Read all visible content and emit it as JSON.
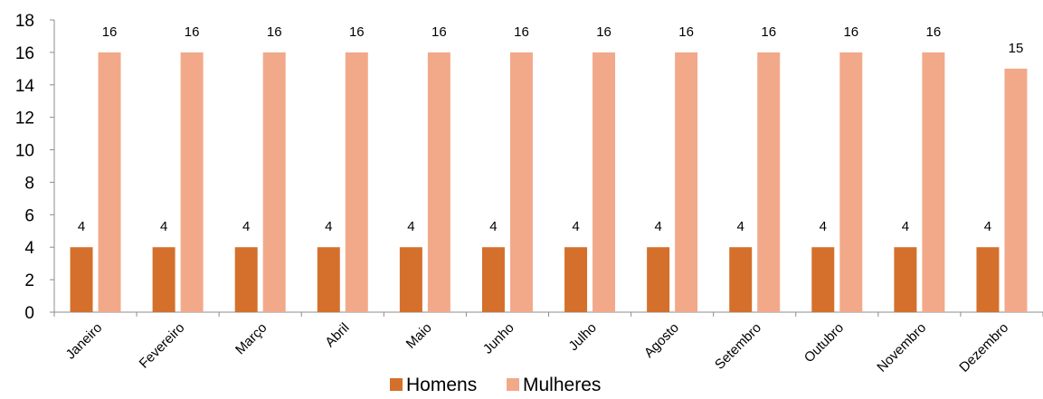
{
  "chart_data": {
    "type": "bar",
    "categories": [
      "Janeiro",
      "Fevereiro",
      "Março",
      "Abril",
      "Maio",
      "Junho",
      "Julho",
      "Agosto",
      "Setembro",
      "Outubro",
      "Novembro",
      "Dezembro"
    ],
    "series": [
      {
        "name": "Homens",
        "color": "#D4702C",
        "values": [
          4,
          4,
          4,
          4,
          4,
          4,
          4,
          4,
          4,
          4,
          4,
          4
        ]
      },
      {
        "name": "Mulheres",
        "color": "#F2A98A",
        "values": [
          16,
          16,
          16,
          16,
          16,
          16,
          16,
          16,
          16,
          16,
          16,
          15
        ]
      }
    ],
    "yticks": [
      0,
      2,
      4,
      6,
      8,
      10,
      12,
      14,
      16,
      18
    ],
    "ylim": [
      0,
      18
    ],
    "grid": false,
    "legend": "bottom",
    "data_labels": true
  }
}
